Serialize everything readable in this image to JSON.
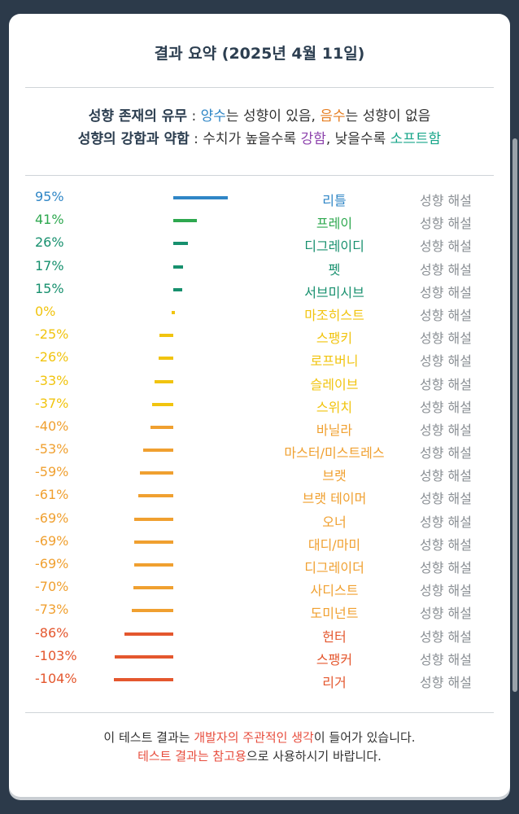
{
  "title": "결과 요약 (2025년 4월 11일)",
  "legend": {
    "line1_label": "성향 존재의 유무",
    "line1_sep": " : ",
    "positive": "양수",
    "line1_mid": "는 성향이 있음, ",
    "negative": "음수",
    "line1_end": "는 성향이 없음",
    "line2_label": "성향의 강함과 약함",
    "line2_sep": " : 수치가 높을수록 ",
    "strong": "강함",
    "line2_mid": ", 낮을수록 ",
    "soft": "소프트함"
  },
  "interp_label": "성향 해설",
  "results": [
    {
      "pct": "95%",
      "value": 95,
      "name": "리틀",
      "color": "#2f86c6"
    },
    {
      "pct": "41%",
      "value": 41,
      "name": "프레이",
      "color": "#2ea84f"
    },
    {
      "pct": "26%",
      "value": 26,
      "name": "디그레이디",
      "color": "#17906e"
    },
    {
      "pct": "17%",
      "value": 17,
      "name": "펫",
      "color": "#17906e"
    },
    {
      "pct": "15%",
      "value": 15,
      "name": "서브미시브",
      "color": "#17906e"
    },
    {
      "pct": "0%",
      "value": 0,
      "name": "마조히스트",
      "color": "#f1c40f"
    },
    {
      "pct": "-25%",
      "value": -25,
      "name": "스팽키",
      "color": "#f1c40f"
    },
    {
      "pct": "-26%",
      "value": -26,
      "name": "로프버니",
      "color": "#f1c40f"
    },
    {
      "pct": "-33%",
      "value": -33,
      "name": "슬레이브",
      "color": "#f1c40f"
    },
    {
      "pct": "-37%",
      "value": -37,
      "name": "스위치",
      "color": "#f1c40f"
    },
    {
      "pct": "-40%",
      "value": -40,
      "name": "바닐라",
      "color": "#f0a030"
    },
    {
      "pct": "-53%",
      "value": -53,
      "name": "마스터/미스트레스",
      "color": "#f0a030"
    },
    {
      "pct": "-59%",
      "value": -59,
      "name": "브랫",
      "color": "#f0a030"
    },
    {
      "pct": "-61%",
      "value": -61,
      "name": "브랫 테이머",
      "color": "#f0a030"
    },
    {
      "pct": "-69%",
      "value": -69,
      "name": "오너",
      "color": "#f0a030"
    },
    {
      "pct": "-69%",
      "value": -69,
      "name": "대디/마미",
      "color": "#f0a030"
    },
    {
      "pct": "-69%",
      "value": -69,
      "name": "디그레이더",
      "color": "#f0a030"
    },
    {
      "pct": "-70%",
      "value": -70,
      "name": "사디스트",
      "color": "#f0a030"
    },
    {
      "pct": "-73%",
      "value": -73,
      "name": "도미넌트",
      "color": "#f0a030"
    },
    {
      "pct": "-86%",
      "value": -86,
      "name": "헌터",
      "color": "#e4572e"
    },
    {
      "pct": "-103%",
      "value": -103,
      "name": "스팽커",
      "color": "#e4572e"
    },
    {
      "pct": "-104%",
      "value": -104,
      "name": "리거",
      "color": "#e4572e"
    }
  ],
  "footer": {
    "l1_a": "이 테스트 결과는 ",
    "l1_b": "개발자의 주관적인 생각",
    "l1_c": "이 들어가 있습니다.",
    "l2_a": "테스트 결과는 참고용",
    "l2_b": "으로 사용하시기 바랍니다."
  }
}
